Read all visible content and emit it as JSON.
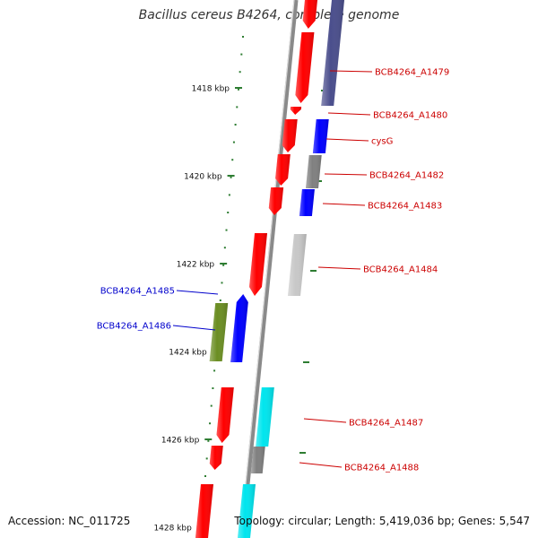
{
  "title": "Bacillus cereus B4264, complete genome",
  "footer": {
    "accession": "Accession: NC_011725",
    "summary": "Topology: circular; Length: 5,419,036 bp; Genes: 5,547"
  },
  "colors": {
    "backbone": "#8a8a8a",
    "ruler_tick": "#2e7d32",
    "label_right": "#cc0000",
    "label_left": "#0000cc",
    "cds_red": "#ff0000",
    "blue": "#0000ff",
    "navy": "#4a4e8c",
    "gray": "#808080",
    "lightgray": "#c8c8c8",
    "cyan": "#00e5ee",
    "olive": "#6b8e23"
  },
  "ruler": {
    "labels": [
      "1418 kbp",
      "1420 kbp",
      "1422 kbp",
      "1424 kbp",
      "1426 kbp",
      "1428 kbp"
    ],
    "positions_kbp": [
      1418,
      1420,
      1422,
      1424,
      1426,
      1428
    ]
  },
  "genes": [
    {
      "label": "BCB4264_A1479",
      "side": "right"
    },
    {
      "label": "BCB4264_A1480",
      "side": "right"
    },
    {
      "label": "cysG",
      "side": "right"
    },
    {
      "label": "BCB4264_A1482",
      "side": "right"
    },
    {
      "label": "BCB4264_A1483",
      "side": "right"
    },
    {
      "label": "BCB4264_A1484",
      "side": "right"
    },
    {
      "label": "BCB4264_A1485",
      "side": "left"
    },
    {
      "label": "BCB4264_A1486",
      "side": "left"
    },
    {
      "label": "BCB4264_A1487",
      "side": "right"
    },
    {
      "label": "BCB4264_A1488",
      "side": "right"
    }
  ]
}
